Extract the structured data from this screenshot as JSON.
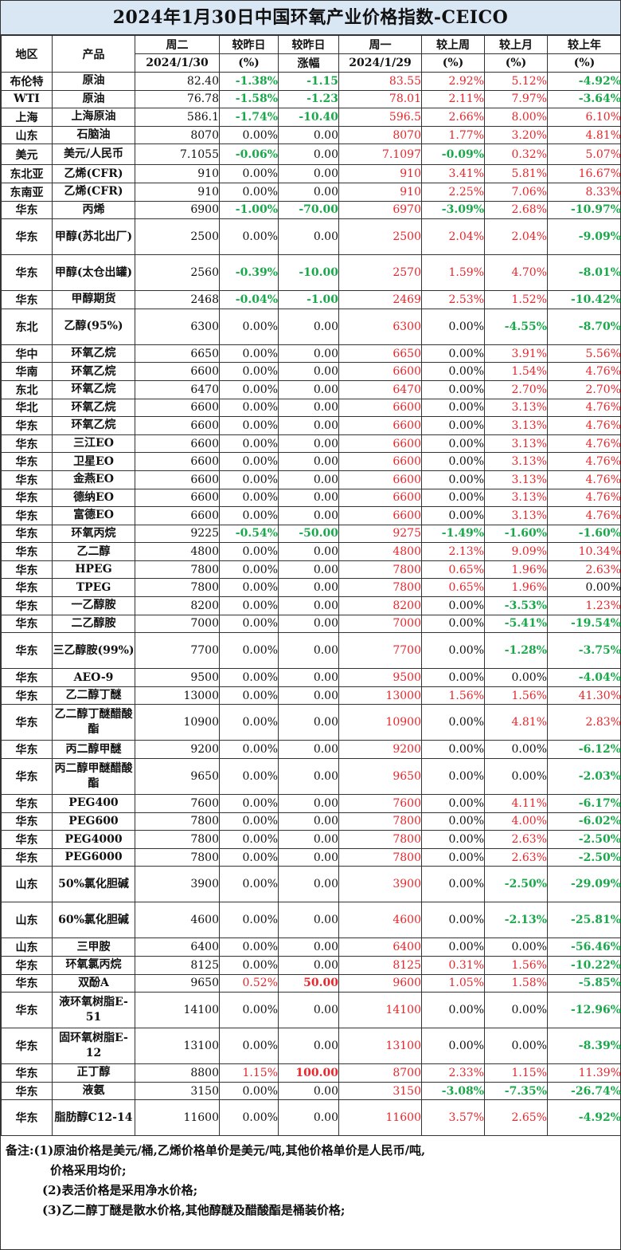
{
  "title": "2024年1月30日中国环氧产业价格指数-CEICO",
  "header": {
    "region": "地区",
    "product": "产品",
    "tue": "周二",
    "tue_date": "2024/1/30",
    "vs_yday": "较昨日",
    "pct": "(%)",
    "vs_yday2": "较昨日",
    "change_amt": "涨幅",
    "mon": "周一",
    "mon_date": "2024/1/29",
    "vs_week": "较上周",
    "pct2": "(%)",
    "vs_month": "较上月",
    "pct3": "(%)",
    "vs_year": "较上年",
    "pct4": "(%)"
  },
  "rows": [
    {
      "region": "布伦特",
      "product": "原油",
      "tue": "82.40",
      "dpct": "-1.38%",
      "damt": "-1.15",
      "mon": "83.55",
      "wk": "2.92%",
      "mo": "5.12%",
      "yr": "-4.92%"
    },
    {
      "region": "WTI",
      "product": "原油",
      "tue": "76.78",
      "dpct": "-1.58%",
      "damt": "-1.23",
      "mon": "78.01",
      "wk": "2.11%",
      "mo": "7.97%",
      "yr": "-3.64%"
    },
    {
      "region": "上海",
      "product": "上海原油",
      "tue": "586.1",
      "dpct": "-1.74%",
      "damt": "-10.40",
      "mon": "596.5",
      "wk": "2.66%",
      "mo": "8.00%",
      "yr": "6.10%"
    },
    {
      "region": "山东",
      "product": "石脑油",
      "tue": "8070",
      "dpct": "0.00%",
      "damt": "0.00",
      "mon": "8070",
      "wk": "1.77%",
      "mo": "3.20%",
      "yr": "4.81%"
    },
    {
      "region": "美元",
      "product": "美元/人民币",
      "tue": "7.1055",
      "dpct": "-0.06%",
      "damt": "0.00",
      "mon": "7.1097",
      "wk": "-0.09%",
      "mo": "0.32%",
      "yr": "5.07%"
    },
    {
      "region": "东北亚",
      "product": "乙烯(CFR)",
      "tue": "910",
      "dpct": "0.00%",
      "damt": "0.00",
      "mon": "910",
      "wk": "3.41%",
      "mo": "5.81%",
      "yr": "16.67%"
    },
    {
      "region": "东南亚",
      "product": "乙烯(CFR)",
      "tue": "910",
      "dpct": "0.00%",
      "damt": "0.00",
      "mon": "910",
      "wk": "2.25%",
      "mo": "7.06%",
      "yr": "8.33%"
    },
    {
      "region": "华东",
      "product": "丙烯",
      "tue": "6900",
      "dpct": "-1.00%",
      "damt": "-70.00",
      "mon": "6970",
      "wk": "-3.09%",
      "mo": "2.68%",
      "yr": "-10.97%"
    },
    {
      "region": "华东",
      "product": "甲醇(苏北出厂)",
      "tue": "2500",
      "dpct": "0.00%",
      "damt": "0.00",
      "mon": "2500",
      "wk": "2.04%",
      "mo": "2.04%",
      "yr": "-9.09%"
    },
    {
      "region": "华东",
      "product": "甲醇(太仓出罐)",
      "tue": "2560",
      "dpct": "-0.39%",
      "damt": "-10.00",
      "mon": "2570",
      "wk": "1.59%",
      "mo": "4.70%",
      "yr": "-8.01%"
    },
    {
      "region": "华东",
      "product": "甲醇期货",
      "tue": "2468",
      "dpct": "-0.04%",
      "damt": "-1.00",
      "mon": "2469",
      "wk": "2.53%",
      "mo": "1.52%",
      "yr": "-10.42%"
    },
    {
      "region": "东北",
      "product": "乙醇(95%)",
      "tue": "6300",
      "dpct": "0.00%",
      "damt": "0.00",
      "mon": "6300",
      "wk": "0.00%",
      "mo": "-4.55%",
      "yr": "-8.70%"
    },
    {
      "region": "华中",
      "product": "环氧乙烷",
      "tue": "6650",
      "dpct": "0.00%",
      "damt": "0.00",
      "mon": "6650",
      "wk": "0.00%",
      "mo": "3.91%",
      "yr": "5.56%"
    },
    {
      "region": "华南",
      "product": "环氧乙烷",
      "tue": "6600",
      "dpct": "0.00%",
      "damt": "0.00",
      "mon": "6600",
      "wk": "0.00%",
      "mo": "1.54%",
      "yr": "4.76%"
    },
    {
      "region": "东北",
      "product": "环氧乙烷",
      "tue": "6470",
      "dpct": "0.00%",
      "damt": "0.00",
      "mon": "6470",
      "wk": "0.00%",
      "mo": "2.70%",
      "yr": "2.70%"
    },
    {
      "region": "华北",
      "product": "环氧乙烷",
      "tue": "6600",
      "dpct": "0.00%",
      "damt": "0.00",
      "mon": "6600",
      "wk": "0.00%",
      "mo": "3.13%",
      "yr": "4.76%"
    },
    {
      "region": "华东",
      "product": "环氧乙烷",
      "tue": "6600",
      "dpct": "0.00%",
      "damt": "0.00",
      "mon": "6600",
      "wk": "0.00%",
      "mo": "3.13%",
      "yr": "4.76%"
    },
    {
      "region": "华东",
      "product": "三江EO",
      "tue": "6600",
      "dpct": "0.00%",
      "damt": "0.00",
      "mon": "6600",
      "wk": "0.00%",
      "mo": "3.13%",
      "yr": "4.76%"
    },
    {
      "region": "华东",
      "product": "卫星EO",
      "tue": "6600",
      "dpct": "0.00%",
      "damt": "0.00",
      "mon": "6600",
      "wk": "0.00%",
      "mo": "3.13%",
      "yr": "4.76%"
    },
    {
      "region": "华东",
      "product": "金燕EO",
      "tue": "6600",
      "dpct": "0.00%",
      "damt": "0.00",
      "mon": "6600",
      "wk": "0.00%",
      "mo": "3.13%",
      "yr": "4.76%"
    },
    {
      "region": "华东",
      "product": "德纳EO",
      "tue": "6600",
      "dpct": "0.00%",
      "damt": "0.00",
      "mon": "6600",
      "wk": "0.00%",
      "mo": "3.13%",
      "yr": "4.76%"
    },
    {
      "region": "华东",
      "product": "富德EO",
      "tue": "6600",
      "dpct": "0.00%",
      "damt": "0.00",
      "mon": "6600",
      "wk": "0.00%",
      "mo": "3.13%",
      "yr": "4.76%"
    },
    {
      "region": "华东",
      "product": "环氧丙烷",
      "tue": "9225",
      "dpct": "-0.54%",
      "damt": "-50.00",
      "mon": "9275",
      "wk": "-1.49%",
      "mo": "-1.60%",
      "yr": "-1.60%"
    },
    {
      "region": "华东",
      "product": "乙二醇",
      "tue": "4800",
      "dpct": "0.00%",
      "damt": "0.00",
      "mon": "4800",
      "wk": "2.13%",
      "mo": "9.09%",
      "yr": "10.34%"
    },
    {
      "region": "华东",
      "product": "HPEG",
      "tue": "7800",
      "dpct": "0.00%",
      "damt": "0.00",
      "mon": "7800",
      "wk": "0.65%",
      "mo": "1.96%",
      "yr": "2.63%"
    },
    {
      "region": "华东",
      "product": "TPEG",
      "tue": "7800",
      "dpct": "0.00%",
      "damt": "0.00",
      "mon": "7800",
      "wk": "0.65%",
      "mo": "1.96%",
      "yr": "0.00%"
    },
    {
      "region": "华东",
      "product": "一乙醇胺",
      "tue": "8200",
      "dpct": "0.00%",
      "damt": "0.00",
      "mon": "8200",
      "wk": "0.00%",
      "mo": "-3.53%",
      "yr": "1.23%"
    },
    {
      "region": "华东",
      "product": "二乙醇胺",
      "tue": "7000",
      "dpct": "0.00%",
      "damt": "0.00",
      "mon": "7000",
      "wk": "0.00%",
      "mo": "-5.41%",
      "yr": "-19.54%"
    },
    {
      "region": "华东",
      "product": "三乙醇胺(99%)",
      "tue": "7700",
      "dpct": "0.00%",
      "damt": "0.00",
      "mon": "7700",
      "wk": "0.00%",
      "mo": "-1.28%",
      "yr": "-3.75%"
    },
    {
      "region": "华东",
      "product": "AEO-9",
      "tue": "9500",
      "dpct": "0.00%",
      "damt": "0.00",
      "mon": "9500",
      "wk": "0.00%",
      "mo": "0.00%",
      "yr": "-4.04%"
    },
    {
      "region": "华东",
      "product": "乙二醇丁醚",
      "tue": "13000",
      "dpct": "0.00%",
      "damt": "0.00",
      "mon": "13000",
      "wk": "1.56%",
      "mo": "1.56%",
      "yr": "41.30%"
    },
    {
      "region": "华东",
      "product": "乙二醇丁醚醋酸酯",
      "tue": "10900",
      "dpct": "0.00%",
      "damt": "0.00",
      "mon": "10900",
      "wk": "0.00%",
      "mo": "4.81%",
      "yr": "2.83%"
    },
    {
      "region": "华东",
      "product": "丙二醇甲醚",
      "tue": "9200",
      "dpct": "0.00%",
      "damt": "0.00",
      "mon": "9200",
      "wk": "0.00%",
      "mo": "0.00%",
      "yr": "-6.12%"
    },
    {
      "region": "华东",
      "product": "丙二醇甲醚醋酸酯",
      "tue": "9650",
      "dpct": "0.00%",
      "damt": "0.00",
      "mon": "9650",
      "wk": "0.00%",
      "mo": "0.00%",
      "yr": "-2.03%"
    },
    {
      "region": "华东",
      "product": "PEG400",
      "tue": "7600",
      "dpct": "0.00%",
      "damt": "0.00",
      "mon": "7600",
      "wk": "0.00%",
      "mo": "4.11%",
      "yr": "-6.17%"
    },
    {
      "region": "华东",
      "product": "PEG600",
      "tue": "7800",
      "dpct": "0.00%",
      "damt": "0.00",
      "mon": "7800",
      "wk": "0.00%",
      "mo": "4.00%",
      "yr": "-6.02%"
    },
    {
      "region": "华东",
      "product": "PEG4000",
      "tue": "7800",
      "dpct": "0.00%",
      "damt": "0.00",
      "mon": "7800",
      "wk": "0.00%",
      "mo": "2.63%",
      "yr": "-2.50%"
    },
    {
      "region": "华东",
      "product": "PEG6000",
      "tue": "7800",
      "dpct": "0.00%",
      "damt": "0.00",
      "mon": "7800",
      "wk": "0.00%",
      "mo": "2.63%",
      "yr": "-2.50%"
    },
    {
      "region": "山东",
      "product": "50%氯化胆碱",
      "tue": "3900",
      "dpct": "0.00%",
      "damt": "0.00",
      "mon": "3900",
      "wk": "0.00%",
      "mo": "-2.50%",
      "yr": "-29.09%"
    },
    {
      "region": "山东",
      "product": "60%氯化胆碱",
      "tue": "4600",
      "dpct": "0.00%",
      "damt": "0.00",
      "mon": "4600",
      "wk": "0.00%",
      "mo": "-2.13%",
      "yr": "-25.81%"
    },
    {
      "region": "山东",
      "product": "三甲胺",
      "tue": "6400",
      "dpct": "0.00%",
      "damt": "0.00",
      "mon": "6400",
      "wk": "0.00%",
      "mo": "0.00%",
      "yr": "-56.46%"
    },
    {
      "region": "华东",
      "product": "环氧氯丙烷",
      "tue": "8125",
      "dpct": "0.00%",
      "damt": "0.00",
      "mon": "8125",
      "wk": "0.31%",
      "mo": "1.56%",
      "yr": "-10.22%"
    },
    {
      "region": "华东",
      "product": "双酚A",
      "tue": "9650",
      "dpct": "0.52%",
      "damt": "50.00",
      "mon": "9600",
      "wk": "1.05%",
      "mo": "1.58%",
      "yr": "-5.85%"
    },
    {
      "region": "华东",
      "product": "液环氧树脂E-51",
      "tue": "14100",
      "dpct": "0.00%",
      "damt": "0.00",
      "mon": "14100",
      "wk": "0.00%",
      "mo": "0.00%",
      "yr": "-12.96%"
    },
    {
      "region": "华东",
      "product": "固环氧树脂E-12",
      "tue": "13100",
      "dpct": "0.00%",
      "damt": "0.00",
      "mon": "13100",
      "wk": "0.00%",
      "mo": "0.00%",
      "yr": "-8.39%"
    },
    {
      "region": "华东",
      "product": "正丁醇",
      "tue": "8800",
      "dpct": "1.15%",
      "damt": "100.00",
      "mon": "8700",
      "wk": "2.33%",
      "mo": "1.15%",
      "yr": "11.39%"
    },
    {
      "region": "华东",
      "product": "液氨",
      "tue": "3150",
      "dpct": "0.00%",
      "damt": "0.00",
      "mon": "3150",
      "wk": "-3.08%",
      "mo": "-7.35%",
      "yr": "-26.74%"
    },
    {
      "region": "华东",
      "product": "脂肪醇C12-14",
      "tue": "11600",
      "dpct": "0.00%",
      "damt": "0.00",
      "mon": "11600",
      "wk": "3.57%",
      "mo": "2.65%",
      "yr": "-4.92%"
    }
  ],
  "notes": {
    "line1": "备注:(1)原油价格是美元/桶,乙烯价格单价是美元/吨,其他价格单价是人民币/吨,",
    "line1b": "价格采用均价;",
    "line2": "(2)表活价格是采用净水价格;",
    "line3": "(3)乙二醇丁醚是散水价格,其他醇醚及醋酸酯是桶装价格;"
  },
  "colors": {
    "up": "#e8262b",
    "down": "#19a84a",
    "title_bg": "#d9e6f4"
  }
}
